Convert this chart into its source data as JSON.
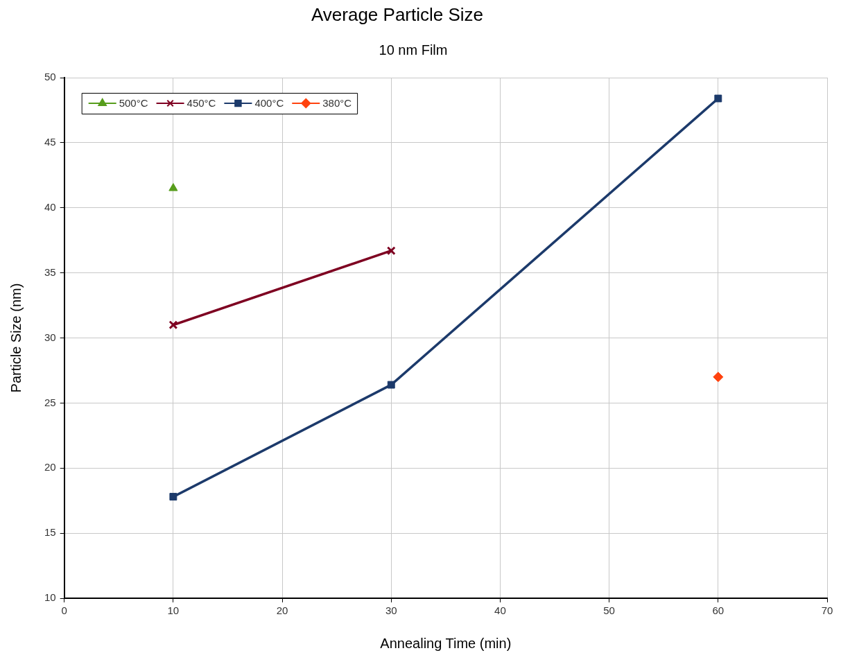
{
  "chart_data": {
    "type": "line",
    "title": "Average Particle Size",
    "subtitle": "10 nm Film",
    "xlabel": "Annealing Time (min)",
    "ylabel": "Particle Size (nm)",
    "xlim": [
      0,
      70
    ],
    "xticks": [
      0,
      10,
      20,
      30,
      40,
      50,
      60,
      70
    ],
    "ylim": [
      10,
      50
    ],
    "yticks": [
      10,
      15,
      20,
      25,
      30,
      35,
      40,
      45,
      50
    ],
    "grid": true,
    "legend": "top left",
    "line_style": "solid",
    "series": [
      {
        "name": "500°C",
        "color": "#579d1c",
        "marker": "triangle",
        "x": [
          10
        ],
        "values": [
          41.5
        ]
      },
      {
        "name": "450°C",
        "color": "#7e0021",
        "marker": "cross",
        "x": [
          10,
          30
        ],
        "values": [
          31.0,
          36.7
        ]
      },
      {
        "name": "400°C",
        "color": "#1c3a6b",
        "marker": "square",
        "x": [
          10,
          30,
          60
        ],
        "values": [
          17.8,
          26.4,
          48.4
        ]
      },
      {
        "name": "380°C",
        "color": "#ff420e",
        "marker": "diamond",
        "x": [
          60
        ],
        "values": [
          27.0
        ]
      }
    ]
  }
}
